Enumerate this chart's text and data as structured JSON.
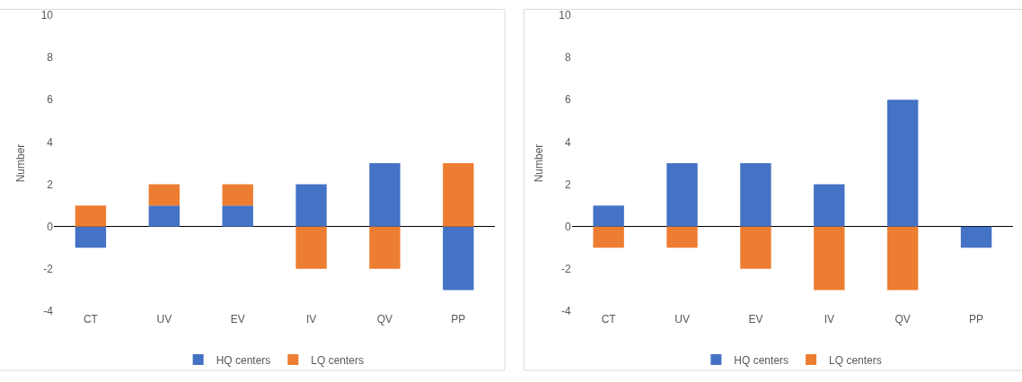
{
  "chart_data": [
    {
      "type": "bar",
      "ylabel": "Number",
      "categories": [
        "CT",
        "UV",
        "EV",
        "IV",
        "QV",
        "PP"
      ],
      "stacked": true,
      "ylim": [
        -4,
        10
      ],
      "yticks": [
        -4,
        -2,
        0,
        2,
        4,
        6,
        8,
        10
      ],
      "legend": "bottom",
      "series": [
        {
          "name": "HQ centers",
          "color": "#4472c4",
          "values": [
            -1,
            1,
            1,
            2,
            3,
            -3
          ]
        },
        {
          "name": "LQ centers",
          "color": "#ed7d31",
          "values": [
            1,
            1,
            1,
            -2,
            -2,
            3
          ]
        }
      ]
    },
    {
      "type": "bar",
      "ylabel": "Number",
      "categories": [
        "CT",
        "UV",
        "EV",
        "IV",
        "QV",
        "PP"
      ],
      "stacked": true,
      "ylim": [
        -4,
        10
      ],
      "yticks": [
        -4,
        -2,
        0,
        2,
        4,
        6,
        8,
        10
      ],
      "legend": "bottom",
      "series": [
        {
          "name": "HQ centers",
          "color": "#4472c4",
          "values": [
            1,
            3,
            3,
            2,
            6,
            -1
          ]
        },
        {
          "name": "LQ centers",
          "color": "#ed7d31",
          "values": [
            -1,
            -1,
            -2,
            -3,
            -3,
            null
          ]
        }
      ]
    }
  ]
}
